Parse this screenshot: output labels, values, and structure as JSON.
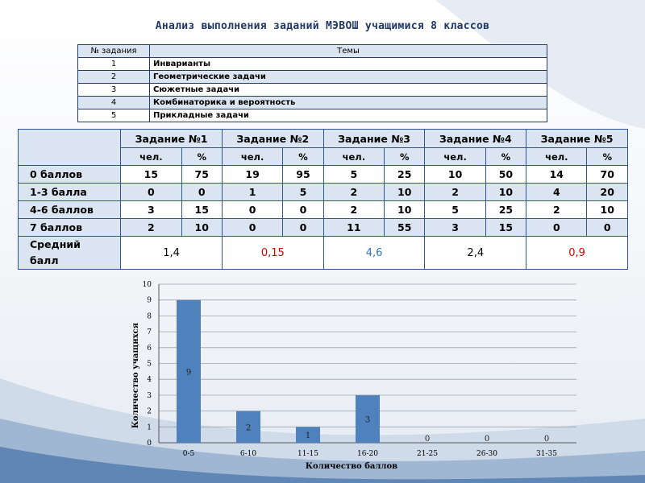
{
  "title": "Анализ выполнения заданий МЭВОШ учащимися 8 классов",
  "topics_table": {
    "headers": [
      "№ задания",
      "Темы"
    ],
    "rows": [
      {
        "num": "1",
        "topic": "Инварианты"
      },
      {
        "num": "2",
        "topic": "Геометрические задачи"
      },
      {
        "num": "3",
        "topic": "Сюжетные задачи"
      },
      {
        "num": "4",
        "topic": "Комбинаторика и вероятность"
      },
      {
        "num": "5",
        "topic": "Прикладные задачи"
      }
    ]
  },
  "results_table": {
    "tasks": [
      "Задание №1",
      "Задание №2",
      "Задание №3",
      "Задание №4",
      "Задание №5"
    ],
    "sub_headers": [
      "чел.",
      "%"
    ],
    "rows": [
      {
        "label": "0 баллов",
        "values": [
          "15",
          "75",
          "19",
          "95",
          "5",
          "25",
          "10",
          "50",
          "14",
          "70"
        ]
      },
      {
        "label": "1-3 балла",
        "values": [
          "0",
          "0",
          "1",
          "5",
          "2",
          "10",
          "2",
          "10",
          "4",
          "20"
        ]
      },
      {
        "label": "4-6 баллов",
        "values": [
          "3",
          "15",
          "0",
          "0",
          "2",
          "10",
          "5",
          "25",
          "2",
          "10"
        ]
      },
      {
        "label": "7 баллов",
        "values": [
          "2",
          "10",
          "0",
          "0",
          "11",
          "55",
          "3",
          "15",
          "0",
          "0"
        ]
      }
    ],
    "average": {
      "label_line1": "Средний",
      "label_line2": "балл",
      "values": [
        "1,4",
        "0,15",
        "4,6",
        "2,4",
        "0,9"
      ],
      "colors": [
        "#000000",
        "#e00000",
        "#2e75b6",
        "#000000",
        "#e00000"
      ]
    }
  },
  "chart_data": {
    "type": "bar",
    "categories": [
      "0-5",
      "6-10",
      "11-15",
      "16-20",
      "21-25",
      "26-30",
      "31-35"
    ],
    "values": [
      9,
      2,
      1,
      3,
      0,
      0,
      0
    ],
    "data_labels": [
      "9",
      "2",
      "1",
      "3",
      "0",
      "0",
      "0"
    ],
    "xlabel": "Количество баллов",
    "ylabel": "Количество учащихся",
    "ylim": [
      0,
      10
    ],
    "yticks": [
      0,
      1,
      2,
      3,
      4,
      5,
      6,
      7,
      8,
      9,
      10
    ],
    "grid": true,
    "bar_color": "#4f81bd"
  }
}
